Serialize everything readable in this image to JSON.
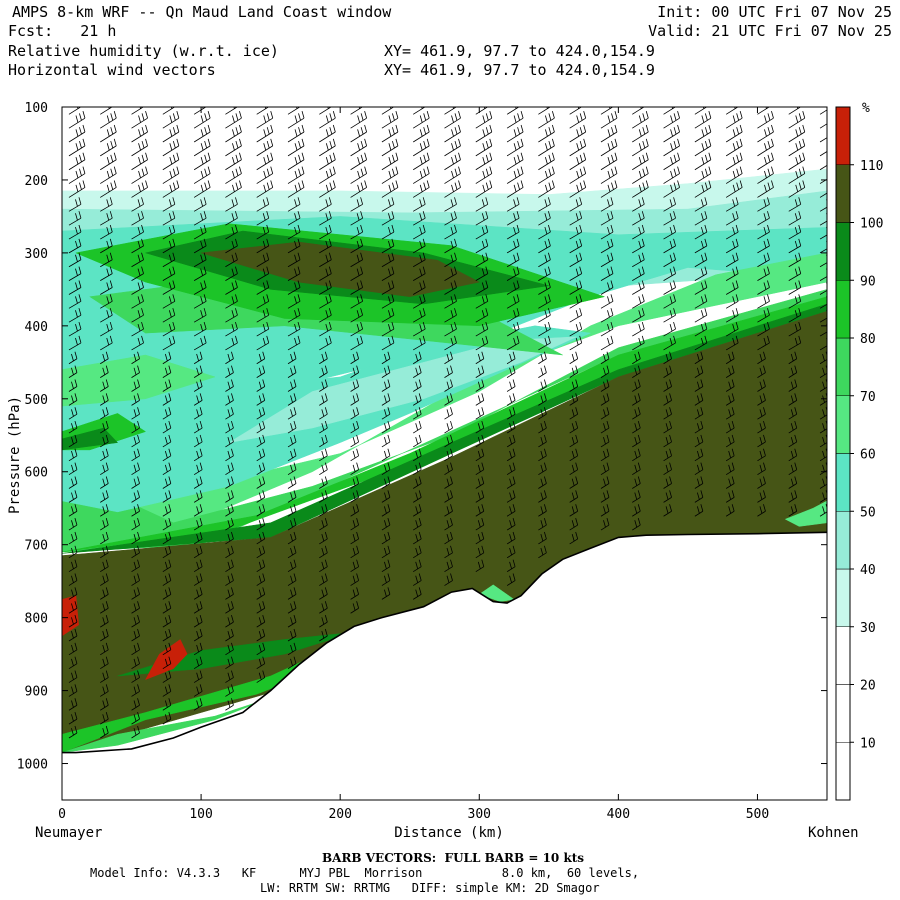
{
  "header": {
    "title": "AMPS 8-km WRF -- Qn Maud Land Coast window",
    "fcst": "Fcst:   21 h",
    "field1": "Relative humidity (w.r.t. ice)",
    "field2": "Horizontal wind vectors",
    "xy1": "XY= 461.9, 97.7 to 424.0,154.9",
    "xy2": "XY= 461.9, 97.7 to 424.0,154.9",
    "init": "Init: 00 UTC Fri 07 Nov 25",
    "valid": "Valid: 21 UTC Fri 07 Nov 25"
  },
  "footer": {
    "barb_note": "BARB VECTORS:  FULL BARB = 10 kts",
    "model_line1": "Model Info: V4.3.3   KF      MYJ PBL  Morrison           8.0 km,  60 levels,",
    "model_line2": "LW: RRTM SW: RRTMG   DIFF: simple KM: 2D Smagor"
  },
  "colors": {
    "rh_lt10": "#ffffff",
    "rh_10": "#ffffff",
    "rh_20": "#ffffff",
    "rh_30": "#c8f8ec",
    "rh_40": "#96ecd8",
    "rh_50": "#5ce4c4",
    "rh_60": "#56e882",
    "rh_70": "#3ed85e",
    "rh_80": "#1cc428",
    "rh_90": "#0a8a1a",
    "rh_100": "#465516",
    "rh_110": "#c82008",
    "terrain": "#ffffff"
  },
  "chart_data": {
    "type": "cross-section",
    "title": "Relative humidity (w.r.t. ice) with horizontal wind vectors",
    "xlabel": "Distance (km)",
    "ylabel": "Pressure (hPa)",
    "left_endpoint": "Neumayer",
    "right_endpoint": "Kohnen",
    "xlim": [
      0,
      550
    ],
    "ylim": [
      1050,
      100
    ],
    "x_ticks": [
      0,
      100,
      200,
      300,
      400,
      500
    ],
    "x_tick_labels": [
      "0",
      "100",
      "200",
      "300",
      "400",
      "500"
    ],
    "y_ticks": [
      100,
      200,
      300,
      400,
      500,
      600,
      700,
      800,
      900,
      1000
    ],
    "y_tick_labels": [
      "100",
      "200",
      "300",
      "400",
      "500",
      "600",
      "700",
      "800",
      "900",
      "1000"
    ],
    "colorbar": {
      "unit": "%",
      "levels": [
        10,
        20,
        30,
        40,
        50,
        60,
        70,
        80,
        90,
        100,
        110
      ],
      "labels": [
        "10",
        "20",
        "30",
        "40",
        "50",
        "60",
        "70",
        "80",
        "90",
        "100",
        "110"
      ],
      "color_keys": [
        "rh_lt10",
        "rh_10",
        "rh_20",
        "rh_30",
        "rh_40",
        "rh_50",
        "rh_60",
        "rh_70",
        "rh_80",
        "rh_90",
        "rh_100",
        "rh_110"
      ]
    },
    "terrain_profile": {
      "distance_km": [
        0,
        10,
        50,
        80,
        100,
        130,
        150,
        170,
        190,
        210,
        230,
        260,
        280,
        295,
        310,
        320,
        330,
        345,
        360,
        380,
        400,
        420,
        450,
        500,
        550
      ],
      "pressure_hpa": [
        985,
        985,
        980,
        965,
        950,
        930,
        900,
        865,
        835,
        812,
        800,
        785,
        765,
        760,
        778,
        780,
        770,
        740,
        720,
        705,
        690,
        687,
        686,
        685,
        683
      ]
    },
    "rh_regions": [
      {
        "level": "rh_20",
        "points": [
          [
            0,
            280
          ],
          [
            0,
            190
          ],
          [
            200,
            195
          ],
          [
            400,
            185
          ],
          [
            550,
            160
          ],
          [
            550,
            240
          ]
        ]
      },
      {
        "level": "rh_30",
        "points": [
          [
            0,
            330
          ],
          [
            0,
            215
          ],
          [
            200,
            215
          ],
          [
            350,
            220
          ],
          [
            450,
            205
          ],
          [
            550,
            185
          ],
          [
            550,
            295
          ]
        ]
      },
      {
        "level": "rh_40",
        "points": [
          [
            0,
            400
          ],
          [
            0,
            240
          ],
          [
            250,
            245
          ],
          [
            450,
            240
          ],
          [
            550,
            215
          ],
          [
            550,
            325
          ]
        ]
      },
      {
        "level": "rh_50",
        "points": [
          [
            0,
            560
          ],
          [
            0,
            270
          ],
          [
            200,
            250
          ],
          [
            400,
            275
          ],
          [
            550,
            265
          ],
          [
            550,
            335
          ],
          [
            450,
            320
          ],
          [
            380,
            360
          ],
          [
            300,
            420
          ]
        ]
      },
      {
        "level": "rh_60",
        "points": [
          [
            0,
            700
          ],
          [
            0,
            590
          ],
          [
            100,
            620
          ],
          [
            200,
            575
          ],
          [
            300,
            490
          ],
          [
            380,
            400
          ],
          [
            470,
            330
          ],
          [
            550,
            300
          ],
          [
            550,
            340
          ],
          [
            400,
            400
          ],
          [
            300,
            470
          ],
          [
            180,
            600
          ],
          [
            80,
            680
          ]
        ]
      },
      {
        "level": "rh_70",
        "points": [
          [
            0,
            710
          ],
          [
            0,
            600
          ],
          [
            80,
            670
          ],
          [
            180,
            620
          ],
          [
            280,
            550
          ],
          [
            400,
            430
          ],
          [
            550,
            350
          ],
          [
            550,
            360
          ],
          [
            400,
            440
          ],
          [
            250,
            570
          ],
          [
            100,
            700
          ]
        ]
      },
      {
        "level": "rh_80",
        "points": [
          [
            0,
            710
          ],
          [
            140,
            660
          ],
          [
            250,
            575
          ],
          [
            400,
            440
          ],
          [
            550,
            360
          ],
          [
            550,
            370
          ],
          [
            400,
            460
          ],
          [
            250,
            590
          ],
          [
            120,
            680
          ]
        ]
      },
      {
        "level": "rh_90",
        "points": [
          [
            0,
            712
          ],
          [
            150,
            670
          ],
          [
            280,
            560
          ],
          [
            400,
            460
          ],
          [
            550,
            370
          ],
          [
            550,
            380
          ],
          [
            400,
            470
          ],
          [
            280,
            575
          ],
          [
            150,
            690
          ]
        ]
      },
      {
        "level": "rh_100",
        "points": [
          [
            0,
            715
          ],
          [
            150,
            690
          ],
          [
            280,
            580
          ],
          [
            400,
            470
          ],
          [
            550,
            380
          ],
          [
            550,
            683
          ],
          [
            0,
            985
          ]
        ]
      },
      {
        "level": "rh_50",
        "points": [
          [
            0,
            640
          ],
          [
            40,
            655
          ],
          [
            120,
            620
          ],
          [
            200,
            560
          ],
          [
            250,
            520
          ],
          [
            320,
            460
          ],
          [
            380,
            410
          ],
          [
            340,
            400
          ],
          [
            260,
            430
          ],
          [
            200,
            470
          ],
          [
            150,
            480
          ],
          [
            120,
            440
          ],
          [
            80,
            420
          ],
          [
            40,
            440
          ],
          [
            0,
            470
          ]
        ]
      },
      {
        "level": "rh_40",
        "points": [
          [
            120,
            560
          ],
          [
            180,
            540
          ],
          [
            260,
            500
          ],
          [
            330,
            450
          ],
          [
            370,
            415
          ],
          [
            320,
            420
          ],
          [
            250,
            455
          ],
          [
            180,
            490
          ]
        ]
      },
      {
        "level": "rh_60",
        "points": [
          [
            0,
            460
          ],
          [
            60,
            440
          ],
          [
            110,
            470
          ],
          [
            60,
            500
          ],
          [
            0,
            510
          ]
        ]
      },
      {
        "level": "rh_70",
        "points": [
          [
            20,
            360
          ],
          [
            140,
            330
          ],
          [
            300,
            380
          ],
          [
            360,
            440
          ],
          [
            260,
            420
          ],
          [
            160,
            400
          ],
          [
            60,
            410
          ]
        ]
      },
      {
        "level": "rh_80",
        "points": [
          [
            0,
            545
          ],
          [
            40,
            520
          ],
          [
            60,
            545
          ],
          [
            20,
            570
          ],
          [
            0,
            570
          ]
        ]
      },
      {
        "level": "rh_90",
        "points": [
          [
            0,
            555
          ],
          [
            30,
            540
          ],
          [
            40,
            560
          ],
          [
            0,
            570
          ]
        ]
      },
      {
        "level": "rh_80",
        "points": [
          [
            10,
            300
          ],
          [
            120,
            260
          ],
          [
            280,
            290
          ],
          [
            390,
            360
          ],
          [
            300,
            400
          ],
          [
            160,
            390
          ],
          [
            60,
            340
          ]
        ]
      },
      {
        "level": "rh_90",
        "points": [
          [
            60,
            300
          ],
          [
            130,
            270
          ],
          [
            260,
            300
          ],
          [
            350,
            345
          ],
          [
            260,
            370
          ],
          [
            150,
            350
          ]
        ]
      },
      {
        "level": "rh_100",
        "points": [
          [
            100,
            300
          ],
          [
            170,
            285
          ],
          [
            270,
            310
          ],
          [
            300,
            340
          ],
          [
            250,
            360
          ],
          [
            170,
            340
          ]
        ]
      },
      {
        "level": "rh_80",
        "points": [
          [
            0,
            985
          ],
          [
            60,
            940
          ],
          [
            140,
            905
          ],
          [
            200,
            860
          ],
          [
            260,
            820
          ],
          [
            300,
            800
          ],
          [
            310,
            778
          ],
          [
            280,
            790
          ],
          [
            230,
            810
          ],
          [
            150,
            880
          ],
          [
            60,
            930
          ],
          [
            0,
            960
          ]
        ]
      },
      {
        "level": "rh_70",
        "points": [
          [
            0,
            985
          ],
          [
            40,
            960
          ],
          [
            110,
            935
          ],
          [
            150,
            910
          ],
          [
            110,
            940
          ],
          [
            40,
            975
          ]
        ]
      },
      {
        "level": "rh_90",
        "points": [
          [
            40,
            880
          ],
          [
            100,
            845
          ],
          [
            160,
            830
          ],
          [
            210,
            820
          ],
          [
            160,
            850
          ],
          [
            100,
            870
          ]
        ]
      },
      {
        "level": "rh_110",
        "points": [
          [
            0,
            775
          ],
          [
            10,
            770
          ],
          [
            12,
            810
          ],
          [
            0,
            825
          ]
        ]
      },
      {
        "level": "rh_110",
        "points": [
          [
            60,
            885
          ],
          [
            70,
            850
          ],
          [
            85,
            830
          ],
          [
            90,
            850
          ],
          [
            80,
            870
          ]
        ]
      },
      {
        "level": "rh_60",
        "points": [
          [
            520,
            665
          ],
          [
            540,
            650
          ],
          [
            550,
            640
          ],
          [
            550,
            670
          ],
          [
            530,
            675
          ]
        ]
      },
      {
        "level": "rh_60",
        "points": [
          [
            300,
            768
          ],
          [
            310,
            755
          ],
          [
            325,
            775
          ],
          [
            315,
            778
          ]
        ]
      }
    ]
  }
}
